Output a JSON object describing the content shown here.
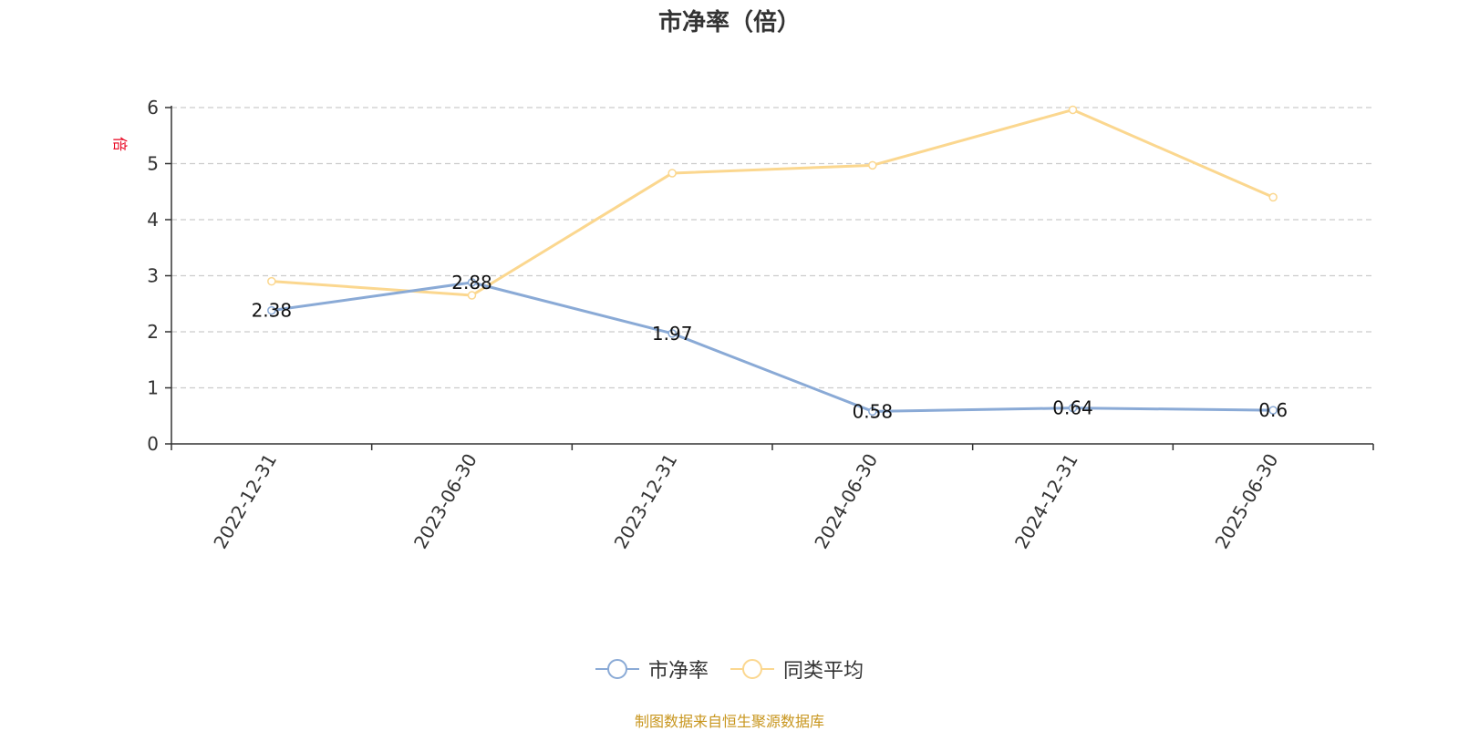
{
  "chart_data": {
    "type": "line",
    "title": "市净率（倍）",
    "ylabel": "倍",
    "xlabel": "",
    "categories": [
      "2022-12-31",
      "2023-06-30",
      "2023-12-31",
      "2024-06-30",
      "2024-12-31",
      "2025-06-30"
    ],
    "ylim": [
      0,
      6
    ],
    "yticks": [
      0,
      1,
      2,
      3,
      4,
      5,
      6
    ],
    "grid": true,
    "legend_position": "bottom-center",
    "series": [
      {
        "name": "市净率",
        "values": [
          2.38,
          2.88,
          1.97,
          0.58,
          0.64,
          0.6
        ],
        "labels": [
          "2.38",
          "2.88",
          "1.97",
          "0.58",
          "0.64",
          "0.6"
        ],
        "color": "#8aaad6"
      },
      {
        "name": "同类平均",
        "values": [
          2.9,
          2.65,
          4.83,
          4.97,
          5.96,
          4.4
        ],
        "color": "#fbd78f"
      }
    ]
  },
  "footer": {
    "source_text": "制图数据来自恒生聚源数据库",
    "color": "#c8961e"
  }
}
